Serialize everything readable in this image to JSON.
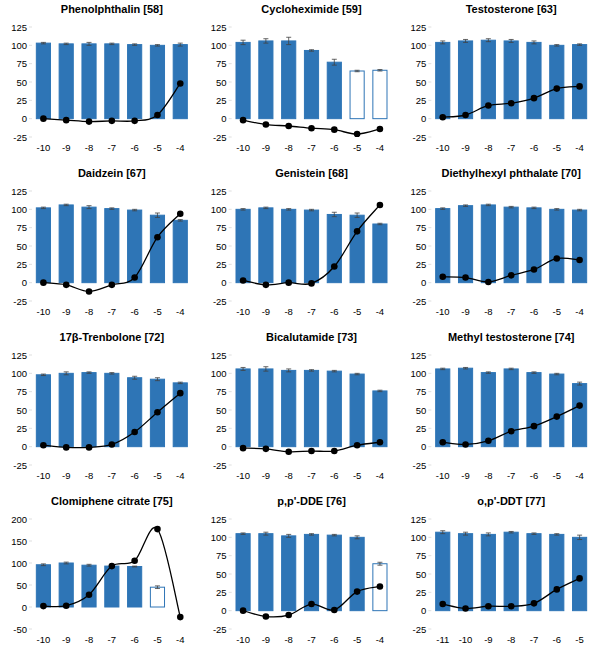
{
  "chart_data": [
    {
      "type": "bar",
      "title": "Phenolphthalin [58]",
      "categories": [
        -10,
        -9,
        -8,
        -7,
        -6,
        -5,
        -4
      ],
      "ylim": [
        -25,
        125
      ],
      "yticks": [
        -25,
        0,
        25,
        50,
        75,
        100,
        125
      ],
      "series": [
        {
          "type": "bar",
          "color": "#2e75b6",
          "colors": [
            "#2e75b6",
            "#2e75b6",
            "#2e75b6",
            "#2e75b6",
            "#2e75b6",
            "#2e75b6",
            "#2e75b6"
          ],
          "values": [
            103,
            102,
            102,
            102,
            101,
            100,
            101
          ],
          "errors": [
            1,
            1,
            2,
            1,
            1,
            1,
            2
          ]
        },
        {
          "type": "line",
          "color": "#000000",
          "marker": "circle",
          "values": [
            0,
            -2,
            -4,
            -3,
            -3,
            5,
            48
          ]
        }
      ]
    },
    {
      "type": "bar",
      "title": "Cycloheximide [59]",
      "categories": [
        -10,
        -9,
        -8,
        -7,
        -6,
        -5,
        -4
      ],
      "ylim": [
        -25,
        125
      ],
      "yticks": [
        -25,
        0,
        25,
        50,
        75,
        100,
        125
      ],
      "series": [
        {
          "type": "bar",
          "color": "#2e75b6",
          "colors": [
            "#2e75b6",
            "#2e75b6",
            "#2e75b6",
            "#2e75b6",
            "#2e75b6",
            "#ffffff",
            "#ffffff"
          ],
          "values": [
            104,
            106,
            106,
            93,
            77,
            65,
            66
          ],
          "errors": [
            3,
            3,
            5,
            1,
            4,
            1,
            1
          ]
        },
        {
          "type": "line",
          "color": "#000000",
          "marker": "circle",
          "values": [
            -2,
            -8,
            -10,
            -13,
            -15,
            -21,
            -14
          ]
        }
      ]
    },
    {
      "type": "bar",
      "title": "Testosterone [63]",
      "categories": [
        -10,
        -9,
        -8,
        -7,
        -6,
        -5,
        -4
      ],
      "ylim": [
        -25,
        125
      ],
      "yticks": [
        -25,
        0,
        25,
        50,
        75,
        100,
        125
      ],
      "series": [
        {
          "type": "bar",
          "color": "#2e75b6",
          "colors": [
            "#2e75b6",
            "#2e75b6",
            "#2e75b6",
            "#2e75b6",
            "#2e75b6",
            "#2e75b6",
            "#2e75b6"
          ],
          "values": [
            104,
            106,
            107,
            106,
            104,
            100,
            101
          ],
          "errors": [
            2,
            2,
            2,
            2,
            2,
            1,
            1
          ]
        },
        {
          "type": "line",
          "color": "#000000",
          "marker": "circle",
          "values": [
            2,
            5,
            18,
            21,
            28,
            41,
            44
          ]
        }
      ]
    },
    {
      "type": "bar",
      "title": "Daidzein [67]",
      "categories": [
        -10,
        -9,
        -8,
        -7,
        -6,
        -5,
        -4
      ],
      "ylim": [
        -25,
        125
      ],
      "yticks": [
        -25,
        0,
        25,
        50,
        75,
        100,
        125
      ],
      "series": [
        {
          "type": "bar",
          "color": "#2e75b6",
          "colors": [
            "#2e75b6",
            "#2e75b6",
            "#2e75b6",
            "#2e75b6",
            "#2e75b6",
            "#2e75b6",
            "#2e75b6"
          ],
          "values": [
            102,
            106,
            103,
            101,
            99,
            92,
            85
          ],
          "errors": [
            1,
            1,
            2,
            1,
            1,
            3,
            1
          ]
        },
        {
          "type": "line",
          "color": "#000000",
          "marker": "circle",
          "values": [
            0,
            -3,
            -12,
            -3,
            7,
            62,
            94
          ]
        }
      ]
    },
    {
      "type": "bar",
      "title": "Genistein [68]",
      "categories": [
        -10,
        -9,
        -8,
        -7,
        -6,
        -5,
        -4
      ],
      "ylim": [
        -25,
        125
      ],
      "yticks": [
        -25,
        0,
        25,
        50,
        75,
        100,
        125
      ],
      "series": [
        {
          "type": "bar",
          "color": "#2e75b6",
          "colors": [
            "#2e75b6",
            "#2e75b6",
            "#2e75b6",
            "#2e75b6",
            "#2e75b6",
            "#2e75b6",
            "#2e75b6"
          ],
          "values": [
            100,
            102,
            100,
            99,
            93,
            92,
            80
          ],
          "errors": [
            1,
            1,
            1,
            1,
            3,
            3,
            1
          ]
        },
        {
          "type": "line",
          "color": "#000000",
          "marker": "circle",
          "values": [
            3,
            -3,
            0,
            -1,
            22,
            70,
            106
          ]
        }
      ]
    },
    {
      "type": "bar",
      "title": "Diethylhexyl phthalate [70]",
      "categories": [
        -10,
        -9,
        -8,
        -7,
        -6,
        -5,
        -4
      ],
      "ylim": [
        -25,
        125
      ],
      "yticks": [
        -25,
        0,
        25,
        50,
        75,
        100,
        125
      ],
      "series": [
        {
          "type": "bar",
          "color": "#2e75b6",
          "colors": [
            "#2e75b6",
            "#2e75b6",
            "#2e75b6",
            "#2e75b6",
            "#2e75b6",
            "#2e75b6",
            "#2e75b6"
          ],
          "values": [
            101,
            105,
            106,
            103,
            102,
            100,
            99
          ],
          "errors": [
            1,
            1,
            1,
            1,
            1,
            1,
            1
          ]
        },
        {
          "type": "line",
          "color": "#000000",
          "marker": "circle",
          "values": [
            8,
            7,
            1,
            10,
            18,
            33,
            31
          ]
        }
      ]
    },
    {
      "type": "bar",
      "title": "17β-Trenbolone [72]",
      "categories": [
        -10,
        -9,
        -8,
        -7,
        -6,
        -5,
        -4
      ],
      "ylim": [
        -25,
        125
      ],
      "yticks": [
        -25,
        0,
        25,
        50,
        75,
        100,
        125
      ],
      "series": [
        {
          "type": "bar",
          "color": "#2e75b6",
          "colors": [
            "#2e75b6",
            "#2e75b6",
            "#2e75b6",
            "#2e75b6",
            "#2e75b6",
            "#2e75b6",
            "#2e75b6"
          ],
          "values": [
            98,
            100,
            101,
            100,
            94,
            92,
            87
          ],
          "errors": [
            1,
            2,
            1,
            1,
            2,
            2,
            1
          ]
        },
        {
          "type": "line",
          "color": "#000000",
          "marker": "circle",
          "values": [
            2,
            -1,
            -1,
            3,
            20,
            47,
            73
          ]
        }
      ]
    },
    {
      "type": "bar",
      "title": "Bicalutamide [73]",
      "categories": [
        -10,
        -9,
        -8,
        -7,
        -6,
        -5,
        -4
      ],
      "ylim": [
        -25,
        125
      ],
      "yticks": [
        -25,
        0,
        25,
        50,
        75,
        100,
        125
      ],
      "series": [
        {
          "type": "bar",
          "color": "#2e75b6",
          "colors": [
            "#2e75b6",
            "#2e75b6",
            "#2e75b6",
            "#2e75b6",
            "#2e75b6",
            "#2e75b6",
            "#2e75b6"
          ],
          "values": [
            106,
            106,
            104,
            104,
            103,
            99,
            76
          ],
          "errors": [
            2,
            3,
            2,
            1,
            1,
            1,
            1
          ]
        },
        {
          "type": "line",
          "color": "#000000",
          "marker": "circle",
          "values": [
            -2,
            -3,
            -7,
            -6,
            -6,
            2,
            6
          ]
        }
      ]
    },
    {
      "type": "bar",
      "title": "Methyl testosterone [74]",
      "categories": [
        -10,
        -9,
        -8,
        -7,
        -6,
        -5,
        -4
      ],
      "ylim": [
        -25,
        125
      ],
      "yticks": [
        -25,
        0,
        25,
        50,
        75,
        100,
        125
      ],
      "series": [
        {
          "type": "bar",
          "color": "#2e75b6",
          "colors": [
            "#2e75b6",
            "#2e75b6",
            "#2e75b6",
            "#2e75b6",
            "#2e75b6",
            "#2e75b6",
            "#2e75b6"
          ],
          "values": [
            106,
            107,
            101,
            106,
            101,
            99,
            86
          ],
          "errors": [
            1,
            1,
            1,
            1,
            1,
            1,
            2
          ]
        },
        {
          "type": "line",
          "color": "#000000",
          "marker": "circle",
          "values": [
            6,
            3,
            8,
            21,
            28,
            41,
            56
          ]
        }
      ]
    },
    {
      "type": "bar",
      "title": "Clomiphene citrate [75]",
      "categories": [
        -10,
        -9,
        -8,
        -7,
        -6,
        -5,
        -4
      ],
      "ylim": [
        -50,
        200
      ],
      "yticks": [
        -50,
        0,
        50,
        100,
        150,
        200
      ],
      "series": [
        {
          "type": "bar",
          "color": "#2e75b6",
          "colors": [
            "#2e75b6",
            "#2e75b6",
            "#2e75b6",
            "#2e75b6",
            "#2e75b6",
            "#ffffff",
            "#2e75b6"
          ],
          "values": [
            96,
            100,
            95,
            93,
            92,
            45,
            null
          ],
          "errors": [
            2,
            2,
            2,
            1,
            1,
            3,
            null
          ]
        },
        {
          "type": "line",
          "color": "#000000",
          "marker": "circle",
          "values": [
            2,
            3,
            28,
            93,
            105,
            177,
            -23
          ]
        }
      ]
    },
    {
      "type": "bar",
      "title": "p,p'-DDE [76]",
      "categories": [
        -10,
        -9,
        -8,
        -7,
        -6,
        -5,
        -4
      ],
      "ylim": [
        -25,
        125
      ],
      "yticks": [
        -25,
        0,
        25,
        50,
        75,
        100,
        125
      ],
      "series": [
        {
          "type": "bar",
          "color": "#2e75b6",
          "colors": [
            "#2e75b6",
            "#2e75b6",
            "#2e75b6",
            "#2e75b6",
            "#2e75b6",
            "#2e75b6",
            "#ffffff"
          ],
          "values": [
            105,
            105,
            102,
            104,
            103,
            100,
            64
          ],
          "errors": [
            1,
            2,
            2,
            1,
            1,
            2,
            2
          ]
        },
        {
          "type": "line",
          "color": "#000000",
          "marker": "circle",
          "values": [
            0,
            -8,
            -6,
            9,
            1,
            26,
            33
          ]
        }
      ]
    },
    {
      "type": "bar",
      "title": "o,p'-DDT [77]",
      "categories": [
        -11,
        -10,
        -9,
        -8,
        -7,
        -6,
        -5
      ],
      "ylim": [
        -25,
        125
      ],
      "yticks": [
        -25,
        0,
        25,
        50,
        75,
        100,
        125
      ],
      "series": [
        {
          "type": "bar",
          "color": "#2e75b6",
          "colors": [
            "#2e75b6",
            "#2e75b6",
            "#2e75b6",
            "#2e75b6",
            "#2e75b6",
            "#2e75b6",
            "#2e75b6"
          ],
          "values": [
            107,
            105,
            104,
            107,
            105,
            104,
            100
          ],
          "errors": [
            2,
            2,
            2,
            1,
            1,
            1,
            3
          ]
        },
        {
          "type": "line",
          "color": "#000000",
          "marker": "circle",
          "values": [
            9,
            3,
            6,
            6,
            10,
            29,
            44
          ]
        }
      ]
    }
  ]
}
